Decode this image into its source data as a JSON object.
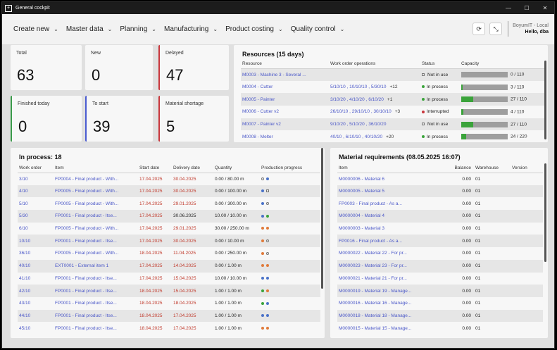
{
  "window": {
    "title": "General cockpit",
    "minimize": "—",
    "maximize": "☐",
    "close": "✕"
  },
  "menu": [
    {
      "label": "Create new"
    },
    {
      "label": "Master data"
    },
    {
      "label": "Planning"
    },
    {
      "label": "Manufacturing"
    },
    {
      "label": "Product costing"
    },
    {
      "label": "Quality control"
    }
  ],
  "user": {
    "system": "BoyumIT - Local",
    "greeting": "Hello, dba"
  },
  "icons": {
    "refresh": "⟳",
    "expand": "⤡",
    "chevron": "⌄"
  },
  "kpis": {
    "total": {
      "label": "Total",
      "value": "63"
    },
    "new": {
      "label": "New",
      "value": "0"
    },
    "delayed": {
      "label": "Delayed",
      "value": "47"
    },
    "finished": {
      "label": "Finished today",
      "value": "0"
    },
    "start": {
      "label": "To start",
      "value": "39"
    },
    "shortage": {
      "label": "Material shortage",
      "value": "5"
    }
  },
  "resources": {
    "title": "Resources (15 days)",
    "headers": [
      "Resource",
      "Work order operations",
      "Status",
      "Capacity"
    ],
    "rows": [
      {
        "resource": "M0003 - Machine 3 - Several ...",
        "ops": "",
        "more": "",
        "status": "Not in use",
        "status_kind": "notinuse",
        "cap": "0 / 110",
        "fill": 0
      },
      {
        "resource": "M0004 - Cutter",
        "ops": "5/10/10 , 10/10/10 , 5/30/10",
        "more": "+12",
        "status": "In process",
        "status_kind": "inprocess",
        "cap": "3 / 110",
        "fill": 0.03
      },
      {
        "resource": "M0005 - Painter",
        "ops": "3/10/20 , 4/10/20 , 6/10/20",
        "more": "+1",
        "status": "In process",
        "status_kind": "inprocess",
        "cap": "27 / 110",
        "fill": 0.25
      },
      {
        "resource": "M0006 - Cutter v2",
        "ops": "26/10/10 , 29/10/10 , 30/10/10",
        "more": "+3",
        "status": "Interrupted",
        "status_kind": "interrupted",
        "cap": "4 / 110",
        "fill": 0.04
      },
      {
        "resource": "M0007 - Painter v2",
        "ops": "9/10/20 , 5/10/20 , 36/10/20",
        "more": "",
        "status": "Not in use",
        "status_kind": "notinuse",
        "cap": "27 / 110",
        "fill": 0.25
      },
      {
        "resource": "M0008 - Melter",
        "ops": "40/10 , 6/10/10 , 40/10/20",
        "more": "+20",
        "status": "In process",
        "status_kind": "inprocess",
        "cap": "24 / 220",
        "fill": 0.11
      }
    ]
  },
  "inprocess": {
    "title": "In process: 18",
    "headers": [
      "Work order",
      "Item",
      "Start date",
      "Delivery date",
      "Quantity",
      "Production progress"
    ],
    "rows": [
      {
        "wo": "3/10",
        "item": "FP0004 - Final product - With...",
        "start": "17.04.2025",
        "delivery": "30.04.2025",
        "delivery_red": true,
        "qty": "0.00 / 80.00 m",
        "p1": "ring",
        "p2": "blue"
      },
      {
        "wo": "4/10",
        "item": "FP0005 - Final product - With...",
        "start": "17.04.2025",
        "delivery": "30.04.2025",
        "delivery_red": true,
        "qty": "0.00 / 100.00 m",
        "p1": "blue",
        "p2": "sq"
      },
      {
        "wo": "5/10",
        "item": "FP0005 - Final product - With...",
        "start": "17.04.2025",
        "delivery": "29.01.2025",
        "delivery_red": true,
        "qty": "0.00 / 300.00 m",
        "p1": "blue",
        "p2": "ring"
      },
      {
        "wo": "5/30",
        "item": "FP0001 - Final product - Itse...",
        "start": "17.04.2025",
        "delivery": "30.06.2025",
        "delivery_red": false,
        "qty": "10.00 / 10.00 m",
        "p1": "blue",
        "p2": "green"
      },
      {
        "wo": "6/10",
        "item": "FP0005 - Final product - With...",
        "start": "17.04.2025",
        "delivery": "29.01.2025",
        "delivery_red": true,
        "qty": "30.00 / 250.00 m",
        "p1": "orange",
        "p2": "orange"
      },
      {
        "wo": "10/10",
        "item": "FP0001 - Final product - Itse...",
        "start": "17.04.2025",
        "delivery": "30.04.2025",
        "delivery_red": true,
        "qty": "0.00 / 10.00 m",
        "p1": "orange",
        "p2": "ring"
      },
      {
        "wo": "36/10",
        "item": "FP0005 - Final product - With...",
        "start": "18.04.2025",
        "delivery": "11.04.2025",
        "delivery_red": true,
        "qty": "0.00 / 250.00 m",
        "p1": "orange",
        "p2": "ring"
      },
      {
        "wo": "40/10",
        "item": "EXT0001 - External item 1",
        "start": "17.04.2025",
        "delivery": "14.04.2025",
        "delivery_red": true,
        "qty": "0.00 / 1.00 m",
        "p1": "orange",
        "p2": "orange"
      },
      {
        "wo": "41/10",
        "item": "FP0001 - Final product - Itse...",
        "start": "17.04.2025",
        "delivery": "15.04.2025",
        "delivery_red": true,
        "qty": "10.00 / 10.00 m",
        "p1": "blue",
        "p2": "blue"
      },
      {
        "wo": "42/10",
        "item": "FP0001 - Final product - Itse...",
        "start": "18.04.2025",
        "delivery": "15.04.2025",
        "delivery_red": true,
        "qty": "1.00 / 1.00 m",
        "p1": "green",
        "p2": "orange"
      },
      {
        "wo": "43/10",
        "item": "FP0001 - Final product - Itse...",
        "start": "18.04.2025",
        "delivery": "18.04.2025",
        "delivery_red": true,
        "qty": "1.00 / 1.00 m",
        "p1": "green",
        "p2": "blue"
      },
      {
        "wo": "44/10",
        "item": "FP0001 - Final product - Itse...",
        "start": "18.04.2025",
        "delivery": "17.04.2025",
        "delivery_red": true,
        "qty": "1.00 / 1.00 m",
        "p1": "blue",
        "p2": "blue"
      },
      {
        "wo": "45/10",
        "item": "FP0001 - Final product - Itse...",
        "start": "18.04.2025",
        "delivery": "17.04.2025",
        "delivery_red": true,
        "qty": "1.00 / 1.00 m",
        "p1": "orange",
        "p2": "orange"
      }
    ]
  },
  "materials": {
    "title": "Material requirements (08.05.2025 16:07)",
    "headers": [
      "Item",
      "Balance",
      "Warehouse",
      "Version"
    ],
    "rows": [
      {
        "item": "M0000006 - Material 6",
        "balance": "0.00",
        "wh": "01",
        "ver": ""
      },
      {
        "item": "M0000005 - Material 5",
        "balance": "0.00",
        "wh": "01",
        "ver": ""
      },
      {
        "item": "FP0003 - Final product - As a...",
        "balance": "0.00",
        "wh": "01",
        "ver": ""
      },
      {
        "item": "M0000004 - Material 4",
        "balance": "0.00",
        "wh": "01",
        "ver": ""
      },
      {
        "item": "M0000003 - Material 3",
        "balance": "0.00",
        "wh": "01",
        "ver": ""
      },
      {
        "item": "FP0016 - Final product - As a...",
        "balance": "0.00",
        "wh": "01",
        "ver": ""
      },
      {
        "item": "M0000022 - Material 22 - For pr...",
        "balance": "0.00",
        "wh": "01",
        "ver": ""
      },
      {
        "item": "M0000023 - Material 23 - For pr...",
        "balance": "0.00",
        "wh": "01",
        "ver": ""
      },
      {
        "item": "M0000021 - Material 21 - For pr...",
        "balance": "0.00",
        "wh": "01",
        "ver": ""
      },
      {
        "item": "M0000019 - Material 19 - Manage...",
        "balance": "0.00",
        "wh": "01",
        "ver": ""
      },
      {
        "item": "M0000016 - Material 16 - Manage...",
        "balance": "0.00",
        "wh": "01",
        "ver": ""
      },
      {
        "item": "M0000018 - Material 18 - Manage...",
        "balance": "0.00",
        "wh": "01",
        "ver": ""
      },
      {
        "item": "M0000015 - Material 15 - Manage...",
        "balance": "0.00",
        "wh": "01",
        "ver": ""
      }
    ]
  },
  "colors": {
    "blue": "#4a72c8",
    "green": "#3aa33a",
    "orange": "#e07a3a",
    "red": "#c8363c",
    "link": "#4a57c8"
  }
}
